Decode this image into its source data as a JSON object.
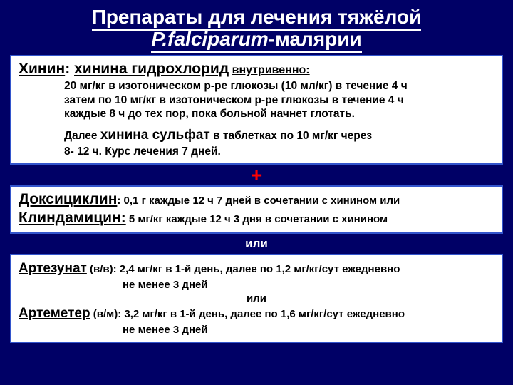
{
  "title_l1": "Препараты для лечения тяжёлой",
  "title_l2_a": "P.falciparum",
  "title_l2_b": "-малярии",
  "box1": {
    "quinine": "Хинин",
    "hydro": "хинина гидрохлорид",
    "route": "внутривенно:",
    "d1": "20 мг/кг в изотоническом р-ре глюкозы (10 мл/кг) в течение 4 ч",
    "d2": "затем по 10 мг/кг в изотоническом р-ре глюкозы в течение 4 ч",
    "d3": "каждые 8 ч до тех пор, пока больной начнет глотать.",
    "d4a": "Далее ",
    "d4b": "хинина сульфат",
    "d4c": " в таблетках по 10 мг/кг через",
    "d5": "8- 12 ч. Курс лечения 7 дней."
  },
  "plus": "+",
  "box2": {
    "doxy": "Доксициклин",
    "doxy_txt": ": 0,1 г каждые 12 ч 7 дней в сочетании с хинином или",
    "clin": "Клиндамицин:",
    "clin_txt": " 5 мг/кг каждые 12 ч 3 дня в сочетании с хинином"
  },
  "ili": "или",
  "box3": {
    "artesunate": "Артезунат",
    "artesunate_r": " (в/в):  ",
    "artesunate_l1": "2,4 мг/кг в 1-й день, далее по 1,2 мг/кг/сут ежедневно",
    "artesunate_l2": "не менее 3 дней",
    "or": "или",
    "artemeter": "Артеметер",
    "artemeter_r": " (в/м): ",
    "artemeter_l1": "3,2 мг/кг в 1-й день, далее по 1,6 мг/кг/сут ежедневно",
    "artemeter_l2": "не менее 3  дней"
  },
  "colors": {
    "bg": "#000066",
    "box_border": "#3355cc",
    "box_bg": "#ffffff",
    "text_white": "#ffffff",
    "text_black": "#000000",
    "plus": "#ff0000"
  }
}
